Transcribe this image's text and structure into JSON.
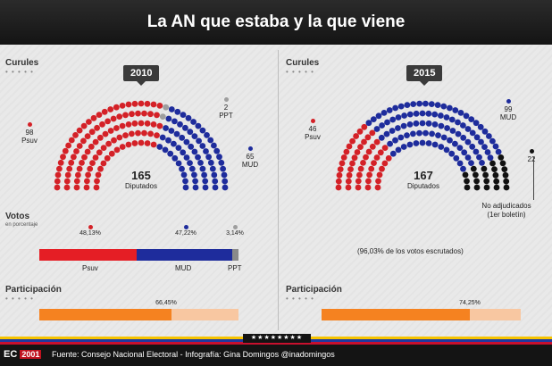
{
  "title": "La AN que estaba y la que viene",
  "colors": {
    "psuv": "#d42127",
    "mud": "#1e2c9c",
    "ppt": "#9e9e9e",
    "na": "#111111",
    "partBar": "#f58220",
    "partRest": "#f8c7a1"
  },
  "left": {
    "curules_label": "Curules",
    "year": "2010",
    "center_number": "165",
    "center_label": "Diputados",
    "labels": {
      "psuv": {
        "num": "98",
        "name": "Psuv"
      },
      "ppt": {
        "num": "2",
        "name": "PPT"
      },
      "mud": {
        "num": "65",
        "name": "MUD"
      }
    },
    "votos": {
      "title": "Votos",
      "subtitle": "en porcentaje",
      "psuv": {
        "pct": "48,13%",
        "name": "Psuv"
      },
      "mud": {
        "pct": "47,22%",
        "name": "MUD"
      },
      "ppt": {
        "pct": "3,14%",
        "name": "PPT"
      }
    },
    "participacion": {
      "title": "Participación",
      "pct": "66,45%"
    }
  },
  "right": {
    "curules_label": "Curules",
    "year": "2015",
    "center_number": "167",
    "center_label": "Diputados",
    "labels": {
      "psuv": {
        "num": "46",
        "name": "Psuv"
      },
      "mud": {
        "num": "99",
        "name": "MUD"
      },
      "na": {
        "num": "22"
      }
    },
    "no_adjudicados": "No adjudicados",
    "boletin": "(1er boletín)",
    "escrutados": "(96,03% de los votos escrutados)",
    "participacion": {
      "title": "Participación",
      "pct": "74,25%"
    }
  },
  "footer": {
    "logo_ec": "EC",
    "logo_num": "2001",
    "source": "Fuente: Consejo Nacional Electoral - Infografía: Gina Domingos @inadomingos"
  },
  "chart_data": [
    {
      "type": "parliament",
      "year": "2010",
      "total": 165,
      "series": [
        {
          "name": "Psuv",
          "seats": 98,
          "color": "#d42127"
        },
        {
          "name": "PPT",
          "seats": 2,
          "color": "#9e9e9e"
        },
        {
          "name": "MUD",
          "seats": 65,
          "color": "#1e2c9c"
        }
      ]
    },
    {
      "type": "parliament",
      "year": "2015",
      "total": 167,
      "series": [
        {
          "name": "Psuv",
          "seats": 46,
          "color": "#d42127"
        },
        {
          "name": "MUD",
          "seats": 99,
          "color": "#1e2c9c"
        },
        {
          "name": "No adjudicados",
          "seats": 22,
          "color": "#111111"
        }
      ]
    },
    {
      "type": "bar",
      "title": "Votos",
      "year": "2010",
      "categories": [
        "Psuv",
        "MUD",
        "PPT"
      ],
      "values": [
        48.13,
        47.22,
        3.14
      ]
    },
    {
      "type": "bar",
      "title": "Participación",
      "categories": [
        "2010",
        "2015"
      ],
      "values": [
        66.45,
        74.25
      ]
    }
  ]
}
